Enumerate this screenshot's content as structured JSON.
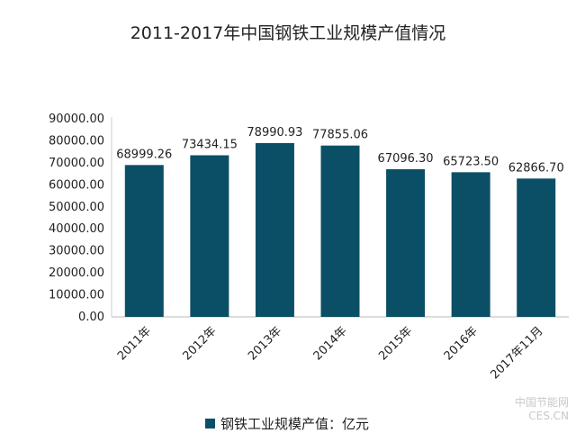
{
  "chart_data": {
    "type": "bar",
    "title": "2011-2017年中国钢铁工业规模产值情况",
    "categories": [
      "2011年",
      "2012年",
      "2013年",
      "2014年",
      "2015年",
      "2016年",
      "2017年11月"
    ],
    "series": [
      {
        "name": "钢铁工业规模产值：亿元",
        "values": [
          68999.26,
          73434.15,
          78990.93,
          77855.06,
          67096.3,
          65723.5,
          62866.7
        ],
        "value_labels": [
          "68999.26",
          "73434.15",
          "78990.93",
          "77855.06",
          "67096.30",
          "65723.50",
          "62866.70"
        ]
      }
    ],
    "ylim": [
      0,
      90000
    ],
    "yticks": [
      "0.00",
      "10000.00",
      "20000.00",
      "30000.00",
      "40000.00",
      "50000.00",
      "60000.00",
      "70000.00",
      "80000.00",
      "90000.00"
    ],
    "grid": false,
    "legend_position": "bottom",
    "bar_color": "#0b4f66"
  },
  "watermark": {
    "line1": "中国节能网",
    "line2": "CES.CN"
  }
}
